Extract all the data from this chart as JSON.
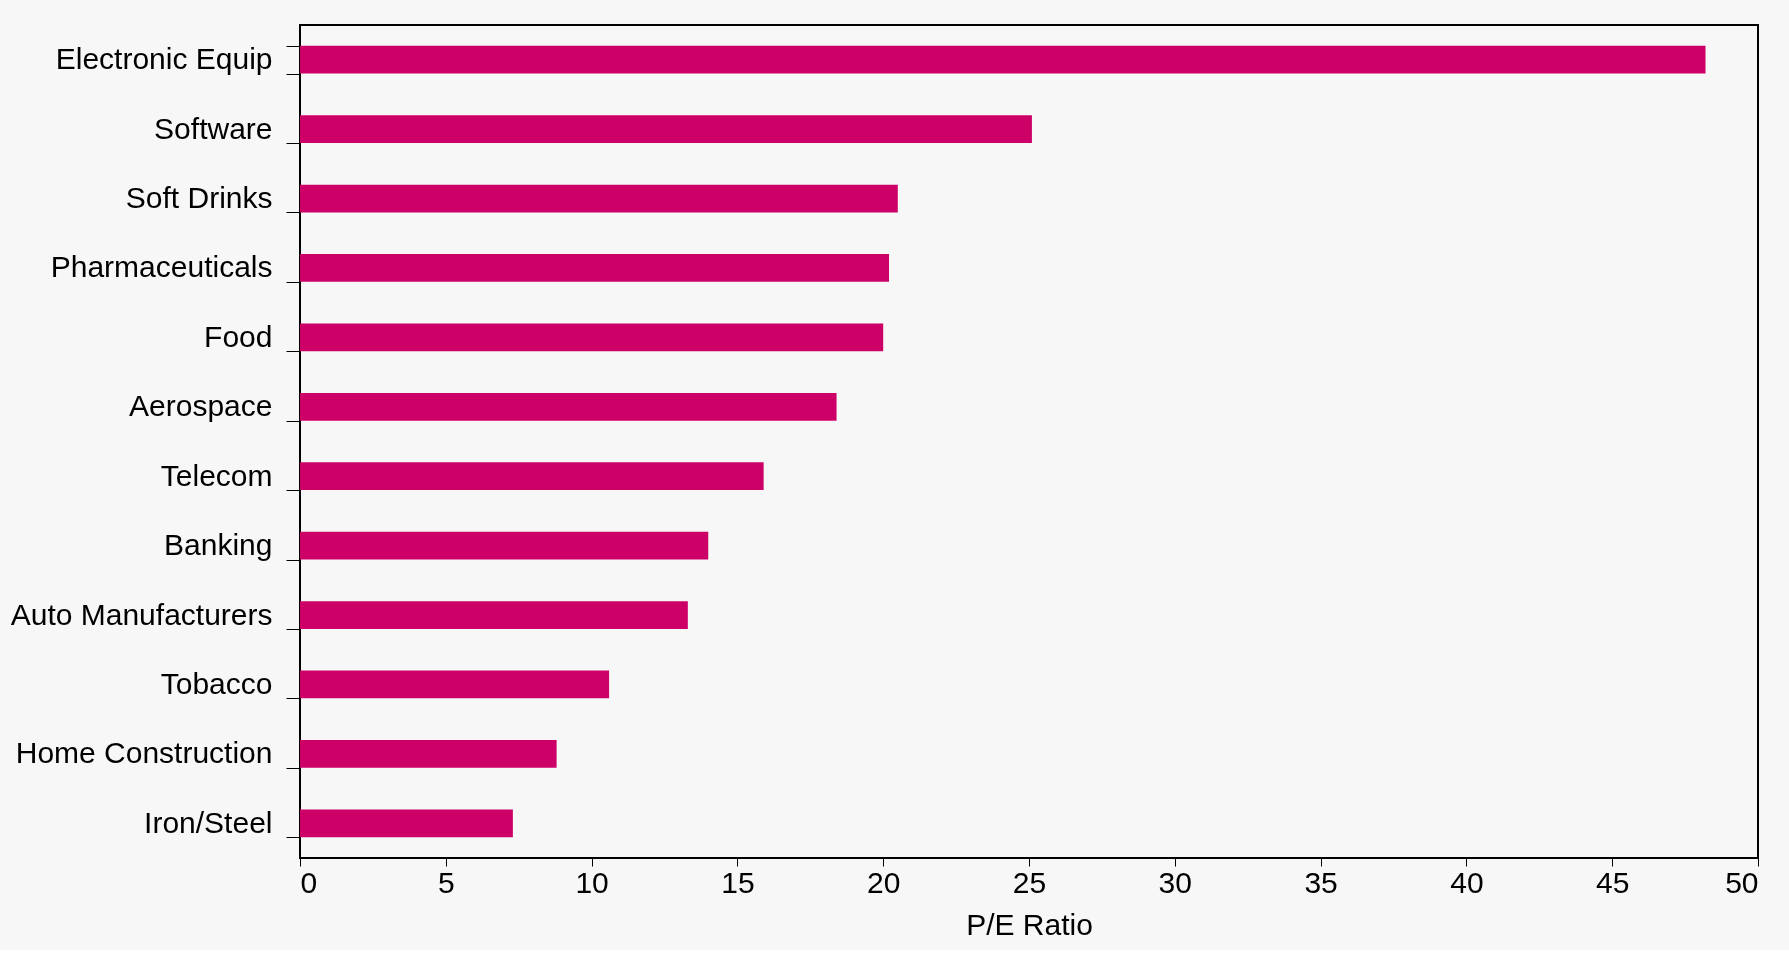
{
  "chart_data": {
    "type": "bar",
    "orientation": "horizontal",
    "xlabel": "P/E Ratio",
    "categories": [
      "Electronic Equip",
      "Software",
      "Soft Drinks",
      "Pharmaceuticals",
      "Food",
      "Aerospace",
      "Telecom",
      "Banking",
      "Auto Manufacturers",
      "Tobacco",
      "Home Construction",
      "Iron/Steel"
    ],
    "values": [
      48.2,
      25.1,
      20.5,
      20.2,
      20.0,
      18.4,
      15.9,
      14.0,
      13.3,
      10.6,
      8.8,
      7.3
    ],
    "color": "#cc0066",
    "xlim": [
      0,
      50
    ],
    "xticks": [
      0,
      5,
      10,
      15,
      20,
      25,
      30,
      35,
      40,
      45,
      50
    ],
    "grid": false
  }
}
